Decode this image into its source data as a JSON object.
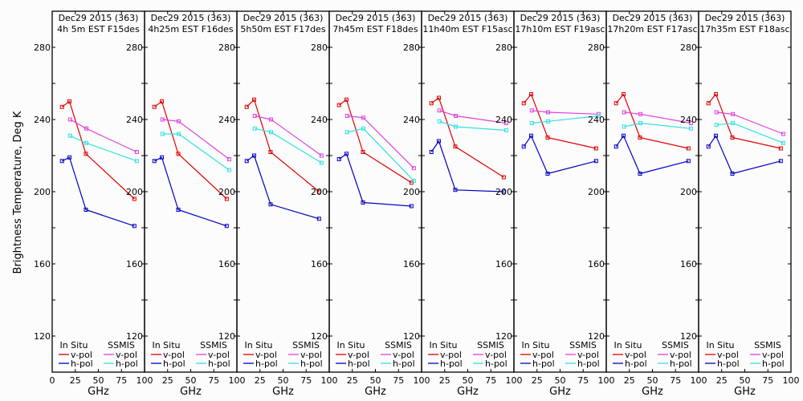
{
  "figure": {
    "ylabel": "Brightness Temperature, Deg K",
    "xlabel": "GHz"
  },
  "legend": {
    "insitu_title": "In Situ",
    "ssmis_title": "SSMIS",
    "vpol": "v-pol",
    "hpol": "h-pol"
  },
  "colors": {
    "insitu_v": "#e00000",
    "insitu_h": "#0000c0",
    "ssmis_v": "#e040e0",
    "ssmis_h": "#30e0e0"
  },
  "chart_data": [
    {
      "type": "line",
      "title": [
        "Dec29 2015 (363)",
        "4h 5m EST F15des"
      ],
      "xlabel": "GHz",
      "ylabel": "Brightness Temperature, Deg K",
      "xlim": [
        0,
        100
      ],
      "ylim": [
        100,
        300
      ],
      "xticks": [
        "0",
        "25",
        "50",
        "75",
        "100"
      ],
      "yticks": [
        "120",
        "160",
        "200",
        "240",
        "280"
      ],
      "series": [
        {
          "name": "In Situ v-pol",
          "x": [
            10.65,
            18.7,
            36.5,
            89.0
          ],
          "y": [
            247,
            250,
            221,
            196
          ]
        },
        {
          "name": "In Situ h-pol",
          "x": [
            10.65,
            18.7,
            36.5,
            89.0
          ],
          "y": [
            217,
            219,
            190,
            181
          ]
        },
        {
          "name": "SSMIS v-pol",
          "x": [
            19.35,
            37.0,
            91.655
          ],
          "y": [
            240,
            235,
            222
          ]
        },
        {
          "name": "SSMIS h-pol",
          "x": [
            19.35,
            37.0,
            91.655
          ],
          "y": [
            231,
            227,
            217
          ]
        }
      ]
    },
    {
      "type": "line",
      "title": [
        "Dec29 2015 (363)",
        "4h25m EST F16des"
      ],
      "xlabel": "GHz",
      "ylabel": "",
      "xlim": [
        0,
        100
      ],
      "ylim": [
        100,
        300
      ],
      "xticks": [
        "25",
        "50",
        "75",
        "100"
      ],
      "yticks": [
        "120",
        "160",
        "200",
        "240",
        "280"
      ],
      "series": [
        {
          "name": "In Situ v-pol",
          "x": [
            10.65,
            18.7,
            36.5,
            89.0
          ],
          "y": [
            247,
            250,
            221,
            196
          ]
        },
        {
          "name": "In Situ h-pol",
          "x": [
            10.65,
            18.7,
            36.5,
            89.0
          ],
          "y": [
            217,
            219,
            190,
            181
          ]
        },
        {
          "name": "SSMIS v-pol",
          "x": [
            19.35,
            37.0,
            91.655
          ],
          "y": [
            240,
            239,
            218
          ]
        },
        {
          "name": "SSMIS h-pol",
          "x": [
            19.35,
            37.0,
            91.655
          ],
          "y": [
            232,
            232,
            212
          ]
        }
      ]
    },
    {
      "type": "line",
      "title": [
        "Dec29 2015 (363)",
        "5h50m EST F17des"
      ],
      "xlabel": "GHz",
      "ylabel": "",
      "xlim": [
        0,
        100
      ],
      "ylim": [
        100,
        300
      ],
      "xticks": [
        "25",
        "50",
        "75",
        "100"
      ],
      "yticks": [
        "120",
        "160",
        "200",
        "240",
        "280"
      ],
      "series": [
        {
          "name": "In Situ v-pol",
          "x": [
            10.65,
            18.7,
            36.5,
            89.0
          ],
          "y": [
            247,
            251,
            222,
            200
          ]
        },
        {
          "name": "In Situ h-pol",
          "x": [
            10.65,
            18.7,
            36.5,
            89.0
          ],
          "y": [
            217,
            220,
            193,
            185
          ]
        },
        {
          "name": "SSMIS v-pol",
          "x": [
            19.35,
            37.0,
            91.655
          ],
          "y": [
            242,
            240,
            220
          ]
        },
        {
          "name": "SSMIS h-pol",
          "x": [
            19.35,
            37.0,
            91.655
          ],
          "y": [
            235,
            233,
            216
          ]
        }
      ]
    },
    {
      "type": "line",
      "title": [
        "Dec29 2015 (363)",
        "7h45m EST F18des"
      ],
      "xlabel": "GHz",
      "ylabel": "",
      "xlim": [
        0,
        100
      ],
      "ylim": [
        100,
        300
      ],
      "xticks": [
        "25",
        "50",
        "75",
        "100"
      ],
      "yticks": [
        "120",
        "160",
        "200",
        "240",
        "280"
      ],
      "series": [
        {
          "name": "In Situ v-pol",
          "x": [
            10.65,
            18.7,
            36.5,
            89.0
          ],
          "y": [
            248,
            251,
            222,
            205
          ]
        },
        {
          "name": "In Situ h-pol",
          "x": [
            10.65,
            18.7,
            36.5,
            89.0
          ],
          "y": [
            218,
            221,
            194,
            192
          ]
        },
        {
          "name": "SSMIS v-pol",
          "x": [
            19.35,
            37.0,
            91.655
          ],
          "y": [
            242,
            241,
            213
          ]
        },
        {
          "name": "SSMIS h-pol",
          "x": [
            19.35,
            37.0,
            91.655
          ],
          "y": [
            233,
            235,
            206
          ]
        }
      ]
    },
    {
      "type": "line",
      "title": [
        "Dec29 2015 (363)",
        "11h40m EST F15asc"
      ],
      "xlabel": "GHz",
      "ylabel": "",
      "xlim": [
        0,
        100
      ],
      "ylim": [
        100,
        300
      ],
      "xticks": [
        "25",
        "50",
        "75",
        "100"
      ],
      "yticks": [
        "120",
        "160",
        "200",
        "240",
        "280"
      ],
      "series": [
        {
          "name": "In Situ v-pol",
          "x": [
            10.65,
            18.7,
            36.5,
            89.0
          ],
          "y": [
            249,
            252,
            225,
            208
          ]
        },
        {
          "name": "In Situ h-pol",
          "x": [
            10.65,
            18.7,
            36.5,
            89.0
          ],
          "y": [
            222,
            228,
            201,
            200
          ]
        },
        {
          "name": "SSMIS v-pol",
          "x": [
            19.35,
            37.0,
            91.655
          ],
          "y": [
            245,
            242,
            238
          ]
        },
        {
          "name": "SSMIS h-pol",
          "x": [
            19.35,
            37.0,
            91.655
          ],
          "y": [
            239,
            236,
            234
          ]
        }
      ]
    },
    {
      "type": "line",
      "title": [
        "Dec29 2015 (363)",
        "17h10m EST F19asc"
      ],
      "xlabel": "GHz",
      "ylabel": "",
      "xlim": [
        0,
        100
      ],
      "ylim": [
        100,
        300
      ],
      "xticks": [
        "25",
        "50",
        "75",
        "100"
      ],
      "yticks": [
        "120",
        "160",
        "200",
        "240",
        "280"
      ],
      "series": [
        {
          "name": "In Situ v-pol",
          "x": [
            10.65,
            18.7,
            36.5,
            89.0
          ],
          "y": [
            249,
            254,
            230,
            224
          ]
        },
        {
          "name": "In Situ h-pol",
          "x": [
            10.65,
            18.7,
            36.5,
            89.0
          ],
          "y": [
            225,
            231,
            210,
            217
          ]
        },
        {
          "name": "SSMIS v-pol",
          "x": [
            19.35,
            37.0,
            91.655
          ],
          "y": [
            245,
            244,
            243
          ]
        },
        {
          "name": "SSMIS h-pol",
          "x": [
            19.35,
            37.0,
            91.655
          ],
          "y": [
            238,
            239,
            242
          ]
        }
      ]
    },
    {
      "type": "line",
      "title": [
        "Dec29 2015 (363)",
        "17h20m EST F17asc"
      ],
      "xlabel": "GHz",
      "ylabel": "",
      "xlim": [
        0,
        100
      ],
      "ylim": [
        100,
        300
      ],
      "xticks": [
        "25",
        "50",
        "75",
        "100"
      ],
      "yticks": [
        "120",
        "160",
        "200",
        "240",
        "280"
      ],
      "series": [
        {
          "name": "In Situ v-pol",
          "x": [
            10.65,
            18.7,
            36.5,
            89.0
          ],
          "y": [
            249,
            254,
            230,
            224
          ]
        },
        {
          "name": "In Situ h-pol",
          "x": [
            10.65,
            18.7,
            36.5,
            89.0
          ],
          "y": [
            225,
            231,
            210,
            217
          ]
        },
        {
          "name": "SSMIS v-pol",
          "x": [
            19.35,
            37.0,
            91.655
          ],
          "y": [
            244,
            243,
            238
          ]
        },
        {
          "name": "SSMIS h-pol",
          "x": [
            19.35,
            37.0,
            91.655
          ],
          "y": [
            236,
            238,
            235
          ]
        }
      ]
    },
    {
      "type": "line",
      "title": [
        "Dec29 2015 (363)",
        "17h35m EST F18asc"
      ],
      "xlabel": "GHz",
      "ylabel": "",
      "xlim": [
        0,
        100
      ],
      "ylim": [
        100,
        300
      ],
      "xticks": [
        "25",
        "50",
        "75",
        "100"
      ],
      "yticks": [
        "120",
        "160",
        "200",
        "240",
        "280"
      ],
      "series": [
        {
          "name": "In Situ v-pol",
          "x": [
            10.65,
            18.7,
            36.5,
            89.0
          ],
          "y": [
            249,
            254,
            230,
            224
          ]
        },
        {
          "name": "In Situ h-pol",
          "x": [
            10.65,
            18.7,
            36.5,
            89.0
          ],
          "y": [
            225,
            231,
            210,
            217
          ]
        },
        {
          "name": "SSMIS v-pol",
          "x": [
            19.35,
            37.0,
            91.655
          ],
          "y": [
            244,
            243,
            232
          ]
        },
        {
          "name": "SSMIS h-pol",
          "x": [
            19.35,
            37.0,
            91.655
          ],
          "y": [
            237,
            238,
            227
          ]
        }
      ]
    }
  ]
}
